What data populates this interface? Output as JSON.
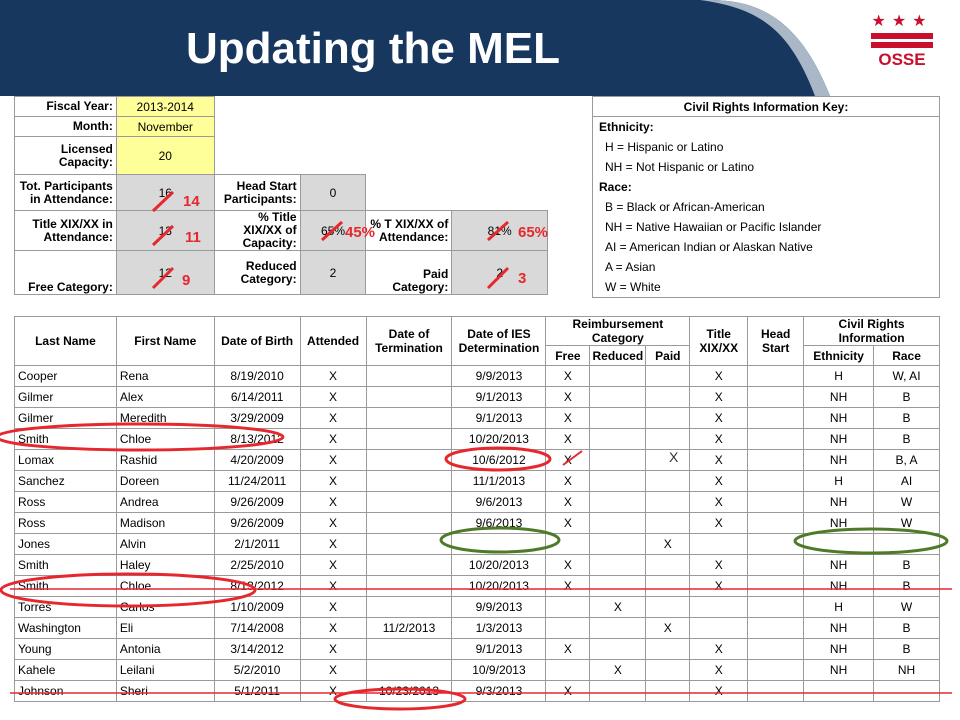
{
  "slide": {
    "title": "Updating the MEL"
  },
  "logo": {
    "stars": "★★★",
    "text": "OSSE"
  },
  "colors": {
    "header": "#17375e",
    "highlight": "#ffff99",
    "gray": "#d9d9d9",
    "red_annotation": "#e6282e",
    "green_annotation": "#4f7a28"
  },
  "summary": {
    "fiscal_year_label": "Fiscal Year:",
    "fiscal_year": "2013-2014",
    "month_label": "Month:",
    "month": "November",
    "licensed_capacity_label": "Licensed Capacity:",
    "licensed_capacity": "20",
    "total_participants_label": "Tot. Participants in Attendance:",
    "total_participants": "16",
    "head_start_label": "Head Start Participants:",
    "head_start": "0",
    "title_xix_label": "Title XIX/XX in Attendance:",
    "title_xix": "13",
    "pct_capacity_label": "% Title XIX/XX of Capacity:",
    "pct_capacity": "65%",
    "pct_attendance_label": "% T XIX/XX of Attendance:",
    "pct_attendance": "81%",
    "free_label": "Free Category:",
    "free": "12",
    "reduced_label": "Reduced Category:",
    "reduced": "2",
    "paid_label": "Paid Category:",
    "paid": "2"
  },
  "key": {
    "title": "Civil Rights Information Key:",
    "ethnicity_head": "Ethnicity:",
    "ethnicity": [
      "H = Hispanic or Latino",
      "NH = Not Hispanic or Latino"
    ],
    "race_head": "Race:",
    "race": [
      "B = Black or African-American",
      "NH = Native Hawaiian or Pacific Islander",
      "AI = American Indian or Alaskan Native",
      "A  = Asian",
      "W = White"
    ]
  },
  "annotations": {
    "participants_new": "14",
    "title_xix_new": "11",
    "free_new": "9",
    "pct_capacity_new": "45%",
    "pct_attendance_new": "65%",
    "paid_new": "3",
    "lomax_paid_mark": "X"
  },
  "roster": {
    "headers": {
      "last": "Last Name",
      "first": "First Name",
      "dob": "Date of Birth",
      "attended": "Attended",
      "term": "Date of Termination",
      "ies": "Date of IES Determination",
      "reimb": "Reimbursement Category",
      "free": "Free",
      "reduced": "Reduced",
      "paid": "Paid",
      "title": "Title XIX/XX",
      "head_start": "Head Start",
      "civil": "Civil Rights Information",
      "ethnicity": "Ethnicity",
      "race": "Race"
    },
    "rows": [
      {
        "last": "Cooper",
        "first": "Rena",
        "dob": "8/19/2010",
        "att": "X",
        "term": "",
        "ies": "9/9/2013",
        "free": "X",
        "reduced": "",
        "paid": "",
        "title": "X",
        "hs": "",
        "eth": "H",
        "race": "W, AI"
      },
      {
        "last": "Gilmer",
        "first": "Alex",
        "dob": "6/14/2011",
        "att": "X",
        "term": "",
        "ies": "9/1/2013",
        "free": "X",
        "reduced": "",
        "paid": "",
        "title": "X",
        "hs": "",
        "eth": "NH",
        "race": "B"
      },
      {
        "last": "Gilmer",
        "first": "Meredith",
        "dob": "3/29/2009",
        "att": "X",
        "term": "",
        "ies": "9/1/2013",
        "free": "X",
        "reduced": "",
        "paid": "",
        "title": "X",
        "hs": "",
        "eth": "NH",
        "race": "B"
      },
      {
        "last": "Smith",
        "first": "Chloe",
        "dob": "8/13/2012",
        "att": "X",
        "term": "",
        "ies": "10/20/2013",
        "free": "X",
        "reduced": "",
        "paid": "",
        "title": "X",
        "hs": "",
        "eth": "NH",
        "race": "B"
      },
      {
        "last": "Lomax",
        "first": "Rashid",
        "dob": "4/20/2009",
        "att": "X",
        "term": "",
        "ies": "10/6/2012",
        "free": "X",
        "reduced": "",
        "paid": "",
        "title": "X",
        "hs": "",
        "eth": "NH",
        "race": "B, A"
      },
      {
        "last": "Sanchez",
        "first": "Doreen",
        "dob": "11/24/2011",
        "att": "X",
        "term": "",
        "ies": "11/1/2013",
        "free": "X",
        "reduced": "",
        "paid": "",
        "title": "X",
        "hs": "",
        "eth": "H",
        "race": "AI"
      },
      {
        "last": "Ross",
        "first": "Andrea",
        "dob": "9/26/2009",
        "att": "X",
        "term": "",
        "ies": "9/6/2013",
        "free": "X",
        "reduced": "",
        "paid": "",
        "title": "X",
        "hs": "",
        "eth": "NH",
        "race": "W"
      },
      {
        "last": "Ross",
        "first": "Madison",
        "dob": "9/26/2009",
        "att": "X",
        "term": "",
        "ies": "9/6/2013",
        "free": "X",
        "reduced": "",
        "paid": "",
        "title": "X",
        "hs": "",
        "eth": "NH",
        "race": "W"
      },
      {
        "last": "Jones",
        "first": "Alvin",
        "dob": "2/1/2011",
        "att": "X",
        "term": "",
        "ies": "",
        "free": "",
        "reduced": "",
        "paid": "X",
        "title": "",
        "hs": "",
        "eth": "",
        "race": ""
      },
      {
        "last": "Smith",
        "first": "Haley",
        "dob": "2/25/2010",
        "att": "X",
        "term": "",
        "ies": "10/20/2013",
        "free": "X",
        "reduced": "",
        "paid": "",
        "title": "X",
        "hs": "",
        "eth": "NH",
        "race": "B"
      },
      {
        "last": "Smith",
        "first": "Chloe",
        "dob": "8/13/2012",
        "att": "X",
        "term": "",
        "ies": "10/20/2013",
        "free": "X",
        "reduced": "",
        "paid": "",
        "title": "X",
        "hs": "",
        "eth": "NH",
        "race": "B"
      },
      {
        "last": "Torres",
        "first": "Carlos",
        "dob": "1/10/2009",
        "att": "X",
        "term": "",
        "ies": "9/9/2013",
        "free": "",
        "reduced": "X",
        "paid": "",
        "title": "",
        "hs": "",
        "eth": "H",
        "race": "W"
      },
      {
        "last": "Washington",
        "first": "Eli",
        "dob": "7/14/2008",
        "att": "X",
        "term": "11/2/2013",
        "ies": "1/3/2013",
        "free": "",
        "reduced": "",
        "paid": "X",
        "title": "",
        "hs": "",
        "eth": "NH",
        "race": "B"
      },
      {
        "last": "Young",
        "first": "Antonia",
        "dob": "3/14/2012",
        "att": "X",
        "term": "",
        "ies": "9/1/2013",
        "free": "X",
        "reduced": "",
        "paid": "",
        "title": "X",
        "hs": "",
        "eth": "NH",
        "race": "B"
      },
      {
        "last": "Kahele",
        "first": "Leilani",
        "dob": "5/2/2010",
        "att": "X",
        "term": "",
        "ies": "10/9/2013",
        "free": "",
        "reduced": "X",
        "paid": "",
        "title": "X",
        "hs": "",
        "eth": "NH",
        "race": "NH"
      },
      {
        "last": "Johnson",
        "first": "Sheri",
        "dob": "5/1/2011",
        "att": "X",
        "term": "10/23/2013",
        "ies": "9/3/2013",
        "free": "X",
        "reduced": "",
        "paid": "",
        "title": "X",
        "hs": "",
        "eth": "",
        "race": ""
      }
    ]
  }
}
